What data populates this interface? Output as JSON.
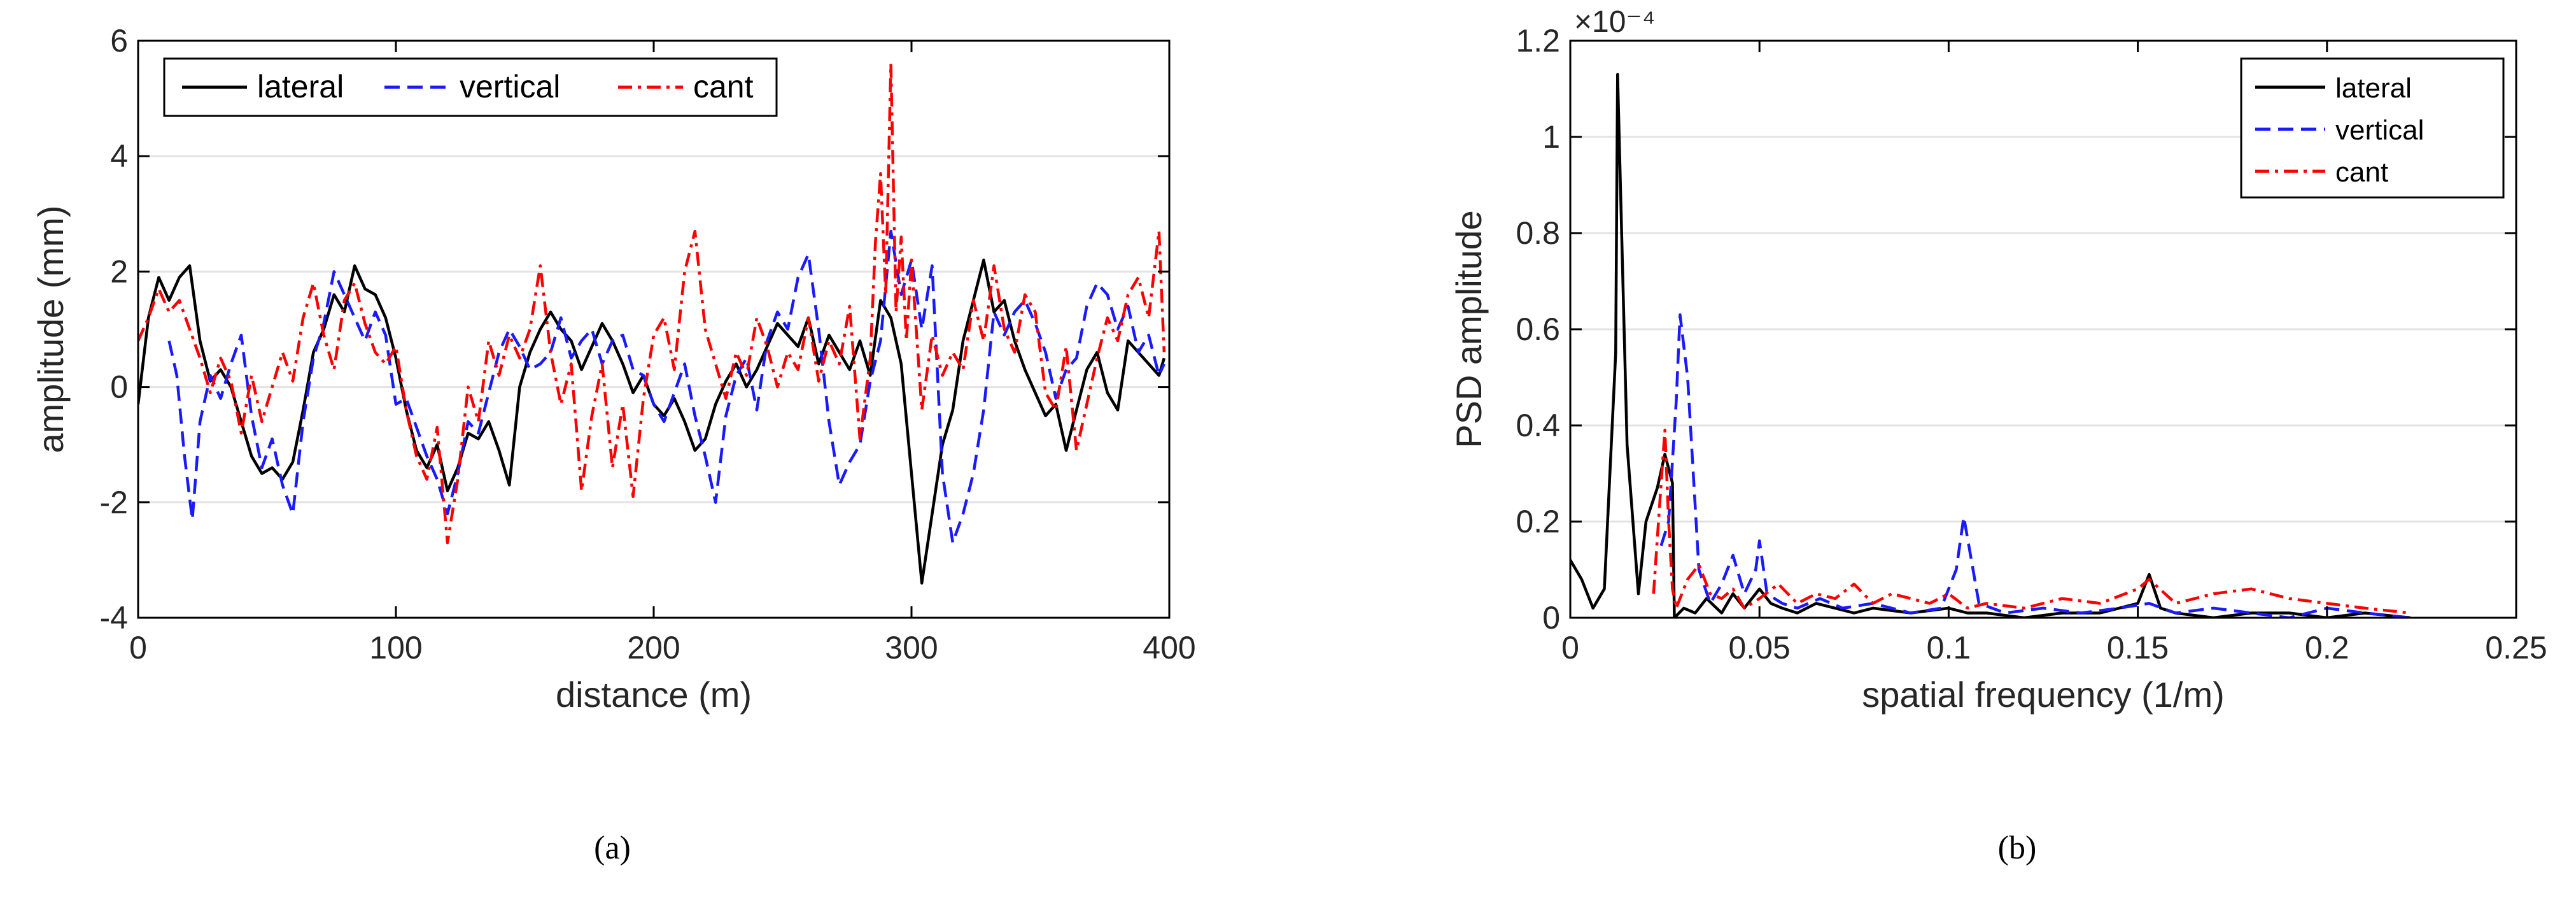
{
  "chart_data": [
    {
      "type": "line",
      "panel_label": "(a)",
      "xlabel": "distance (m)",
      "ylabel": "amplitude (mm)",
      "xlim": [
        0,
        400
      ],
      "ylim": [
        -4,
        6
      ],
      "xticks": [
        0,
        100,
        200,
        300,
        400
      ],
      "yticks": [
        -4,
        -2,
        0,
        2,
        4,
        6
      ],
      "grid": "horizontal",
      "legend": {
        "placement": "top-left",
        "orientation": "horizontal"
      },
      "series": [
        {
          "name": "lateral",
          "color": "#000000",
          "dash": "solid",
          "x": [
            0,
            4,
            8,
            12,
            16,
            20,
            24,
            28,
            32,
            36,
            40,
            44,
            48,
            52,
            56,
            60,
            64,
            68,
            72,
            76,
            80,
            84,
            88,
            92,
            96,
            100,
            104,
            108,
            112,
            116,
            120,
            124,
            128,
            132,
            136,
            140,
            144,
            148,
            152,
            156,
            160,
            164,
            168,
            172,
            176,
            180,
            184,
            188,
            192,
            196,
            200,
            204,
            208,
            212,
            216,
            220,
            224,
            228,
            232,
            236,
            240,
            244,
            248,
            252,
            256,
            260,
            264,
            268,
            272,
            276,
            280,
            284,
            288,
            292,
            296,
            300,
            304,
            308,
            312,
            316,
            320,
            324,
            328,
            332,
            336,
            340,
            344,
            348,
            352,
            356,
            360,
            364,
            368,
            372,
            376,
            380,
            384,
            388,
            392,
            396,
            398
          ],
          "y": [
            -0.3,
            1.2,
            1.9,
            1.5,
            1.9,
            2.1,
            0.8,
            0.1,
            0.3,
            0.0,
            -0.6,
            -1.2,
            -1.5,
            -1.4,
            -1.6,
            -1.3,
            -0.4,
            0.6,
            1.0,
            1.6,
            1.3,
            2.1,
            1.7,
            1.6,
            1.2,
            0.5,
            -0.4,
            -1.1,
            -1.4,
            -1.0,
            -1.8,
            -1.4,
            -0.8,
            -0.9,
            -0.6,
            -1.1,
            -1.7,
            0.0,
            0.6,
            1.0,
            1.3,
            1.0,
            0.8,
            0.3,
            0.7,
            1.1,
            0.8,
            0.4,
            -0.1,
            0.2,
            -0.3,
            -0.5,
            -0.2,
            -0.6,
            -1.1,
            -0.9,
            -0.3,
            0.1,
            0.4,
            0.0,
            0.3,
            0.7,
            1.1,
            0.9,
            0.7,
            1.2,
            0.4,
            0.9,
            0.6,
            0.3,
            0.8,
            0.2,
            1.5,
            1.2,
            0.4,
            -1.5,
            -3.4,
            -2.2,
            -1.0,
            -0.4,
            0.8,
            1.5,
            2.2,
            1.3,
            1.5,
            0.8,
            0.3,
            -0.1,
            -0.5,
            -0.3,
            -1.1,
            -0.4,
            0.3,
            0.6,
            -0.1,
            -0.4,
            0.8,
            0.6,
            0.4,
            0.2,
            0.5
          ]
        },
        {
          "name": "vertical",
          "color": "#1a1aff",
          "dash": "dashed",
          "x": [
            12,
            15,
            18,
            21,
            24,
            28,
            32,
            36,
            40,
            44,
            48,
            52,
            56,
            60,
            64,
            68,
            72,
            76,
            80,
            84,
            88,
            92,
            96,
            100,
            104,
            108,
            112,
            116,
            120,
            124,
            128,
            132,
            136,
            140,
            144,
            148,
            152,
            156,
            160,
            164,
            168,
            172,
            176,
            180,
            184,
            188,
            192,
            196,
            200,
            204,
            208,
            212,
            216,
            220,
            224,
            228,
            232,
            236,
            240,
            244,
            248,
            252,
            256,
            260,
            264,
            268,
            272,
            276,
            280,
            284,
            288,
            292,
            296,
            300,
            304,
            308,
            312,
            316,
            320,
            324,
            328,
            332,
            336,
            340,
            344,
            348,
            352,
            356,
            360,
            364,
            368,
            372,
            376,
            380,
            384,
            388,
            392,
            396,
            398
          ],
          "y": [
            0.8,
            0.2,
            -1.2,
            -2.3,
            -0.6,
            0.2,
            -0.2,
            0.4,
            0.9,
            -0.5,
            -1.4,
            -0.9,
            -1.7,
            -2.2,
            -0.6,
            0.5,
            1.1,
            2.0,
            1.6,
            1.2,
            0.8,
            1.3,
            0.9,
            -0.3,
            -0.2,
            -0.7,
            -1.2,
            -1.6,
            -2.2,
            -1.5,
            -0.6,
            -0.8,
            -0.1,
            0.6,
            1.0,
            0.7,
            0.3,
            0.4,
            0.6,
            1.2,
            0.5,
            0.8,
            1.0,
            0.4,
            0.8,
            0.9,
            0.3,
            0.2,
            -0.3,
            -0.6,
            -0.1,
            0.4,
            -0.5,
            -1.2,
            -2.0,
            -0.5,
            0.2,
            0.5,
            -0.4,
            0.8,
            1.3,
            1.0,
            1.9,
            2.3,
            1.0,
            -0.6,
            -1.7,
            -1.3,
            -1.0,
            0.1,
            0.8,
            2.7,
            1.6,
            2.2,
            1.0,
            2.1,
            -1.5,
            -2.7,
            -2.2,
            -1.5,
            -0.4,
            1.3,
            0.9,
            1.3,
            1.5,
            1.1,
            0.6,
            -0.2,
            0.3,
            0.5,
            1.4,
            1.8,
            1.6,
            1.0,
            1.4,
            0.6,
            0.9,
            0.2,
            0.4
          ]
        },
        {
          "name": "cant",
          "color": "#ff0000",
          "dash": "dashdot",
          "x": [
            0,
            4,
            8,
            12,
            16,
            20,
            24,
            28,
            32,
            36,
            40,
            44,
            48,
            52,
            56,
            60,
            64,
            68,
            72,
            76,
            80,
            84,
            88,
            92,
            96,
            100,
            104,
            108,
            112,
            116,
            120,
            124,
            128,
            132,
            136,
            140,
            144,
            148,
            152,
            156,
            160,
            164,
            168,
            172,
            176,
            180,
            184,
            188,
            192,
            196,
            200,
            204,
            208,
            212,
            216,
            220,
            224,
            228,
            232,
            236,
            240,
            244,
            248,
            252,
            256,
            260,
            264,
            268,
            272,
            276,
            280,
            284,
            286,
            288,
            290,
            292,
            294,
            296,
            298,
            300,
            304,
            308,
            312,
            316,
            320,
            324,
            328,
            332,
            336,
            340,
            344,
            348,
            352,
            356,
            360,
            364,
            368,
            372,
            376,
            380,
            384,
            388,
            392,
            396,
            398
          ],
          "y": [
            0.8,
            1.2,
            1.7,
            1.3,
            1.5,
            1.0,
            0.5,
            -0.1,
            0.5,
            0.1,
            -0.8,
            0.2,
            -0.6,
            0.0,
            0.6,
            0.1,
            1.2,
            1.8,
            0.9,
            0.3,
            1.5,
            1.8,
            1.1,
            0.6,
            0.4,
            0.7,
            -0.4,
            -1.2,
            -1.6,
            -0.7,
            -2.7,
            -1.6,
            0.0,
            -0.6,
            0.8,
            0.2,
            0.9,
            0.5,
            1.0,
            2.1,
            0.6,
            -0.3,
            0.4,
            -1.8,
            -0.5,
            0.4,
            -1.4,
            -0.3,
            -1.9,
            -0.2,
            0.9,
            1.2,
            0.3,
            2.0,
            2.7,
            1.0,
            0.4,
            -0.2,
            0.6,
            0.2,
            1.2,
            0.7,
            0.0,
            0.6,
            0.3,
            1.2,
            0.1,
            0.8,
            0.4,
            1.4,
            -0.9,
            0.5,
            2.5,
            3.7,
            1.6,
            5.6,
            1.3,
            2.6,
            0.8,
            2.2,
            -0.4,
            0.9,
            0.2,
            0.6,
            0.3,
            1.5,
            0.8,
            2.1,
            1.0,
            0.6,
            1.6,
            1.3,
            -0.1,
            -0.4,
            0.7,
            -1.1,
            -0.3,
            0.5,
            1.2,
            0.8,
            1.6,
            1.9,
            1.2,
            2.7,
            0.6
          ]
        }
      ]
    },
    {
      "type": "line",
      "panel_label": "(b)",
      "xlabel": "spatial frequency (1/m)",
      "ylabel": "PSD amplitude",
      "axis_multiplier": "×10⁻⁴",
      "xlim": [
        0,
        0.25
      ],
      "ylim": [
        0,
        1.2
      ],
      "xticks": [
        0,
        0.05,
        0.1,
        0.15,
        0.2,
        0.25
      ],
      "yticks": [
        0,
        0.2,
        0.4,
        0.6,
        0.8,
        1,
        1.2
      ],
      "grid": "horizontal",
      "legend": {
        "placement": "top-right",
        "orientation": "vertical"
      },
      "series": [
        {
          "name": "lateral",
          "color": "#000000",
          "dash": "solid",
          "x": [
            0,
            0.003,
            0.006,
            0.009,
            0.012,
            0.0125,
            0.015,
            0.018,
            0.02,
            0.023,
            0.025,
            0.027,
            0.0275,
            0.03,
            0.033,
            0.036,
            0.04,
            0.043,
            0.046,
            0.05,
            0.053,
            0.056,
            0.06,
            0.065,
            0.07,
            0.075,
            0.08,
            0.09,
            0.1,
            0.105,
            0.11,
            0.12,
            0.13,
            0.14,
            0.15,
            0.153,
            0.156,
            0.16,
            0.17,
            0.18,
            0.19,
            0.2,
            0.21,
            0.222
          ],
          "y": [
            0.12,
            0.08,
            0.02,
            0.06,
            0.55,
            1.13,
            0.36,
            0.05,
            0.2,
            0.27,
            0.34,
            0.28,
            0.0,
            0.02,
            0.01,
            0.04,
            0.01,
            0.05,
            0.02,
            0.06,
            0.03,
            0.02,
            0.01,
            0.03,
            0.02,
            0.01,
            0.02,
            0.01,
            0.02,
            0.01,
            0.01,
            0.0,
            0.01,
            0.01,
            0.03,
            0.09,
            0.02,
            0.01,
            0.0,
            0.01,
            0.01,
            0.0,
            0.01,
            0.0
          ]
        },
        {
          "name": "vertical",
          "color": "#1a1aff",
          "dash": "dashed",
          "x": [
            0.024,
            0.026,
            0.028,
            0.029,
            0.031,
            0.034,
            0.037,
            0.04,
            0.043,
            0.046,
            0.049,
            0.05,
            0.052,
            0.056,
            0.06,
            0.066,
            0.072,
            0.08,
            0.09,
            0.098,
            0.102,
            0.104,
            0.108,
            0.115,
            0.125,
            0.135,
            0.145,
            0.153,
            0.16,
            0.17,
            0.18,
            0.19,
            0.2,
            0.21,
            0.222
          ],
          "y": [
            0.15,
            0.2,
            0.45,
            0.63,
            0.5,
            0.1,
            0.03,
            0.07,
            0.13,
            0.05,
            0.1,
            0.16,
            0.05,
            0.03,
            0.02,
            0.04,
            0.02,
            0.03,
            0.01,
            0.02,
            0.1,
            0.21,
            0.03,
            0.01,
            0.02,
            0.01,
            0.02,
            0.03,
            0.01,
            0.02,
            0.01,
            0.0,
            0.02,
            0.01,
            0.0
          ]
        },
        {
          "name": "cant",
          "color": "#ff0000",
          "dash": "dashdot",
          "x": [
            0.022,
            0.024,
            0.025,
            0.026,
            0.027,
            0.028,
            0.031,
            0.034,
            0.037,
            0.04,
            0.043,
            0.046,
            0.05,
            0.055,
            0.06,
            0.065,
            0.07,
            0.075,
            0.08,
            0.085,
            0.09,
            0.095,
            0.1,
            0.105,
            0.11,
            0.12,
            0.13,
            0.14,
            0.15,
            0.153,
            0.16,
            0.17,
            0.18,
            0.19,
            0.2,
            0.21,
            0.222
          ],
          "y": [
            0.05,
            0.28,
            0.39,
            0.2,
            0.06,
            0.02,
            0.08,
            0.11,
            0.05,
            0.04,
            0.06,
            0.02,
            0.04,
            0.07,
            0.03,
            0.05,
            0.04,
            0.07,
            0.03,
            0.05,
            0.04,
            0.03,
            0.05,
            0.02,
            0.03,
            0.02,
            0.04,
            0.03,
            0.06,
            0.08,
            0.03,
            0.05,
            0.06,
            0.04,
            0.03,
            0.02,
            0.01
          ]
        }
      ]
    }
  ]
}
